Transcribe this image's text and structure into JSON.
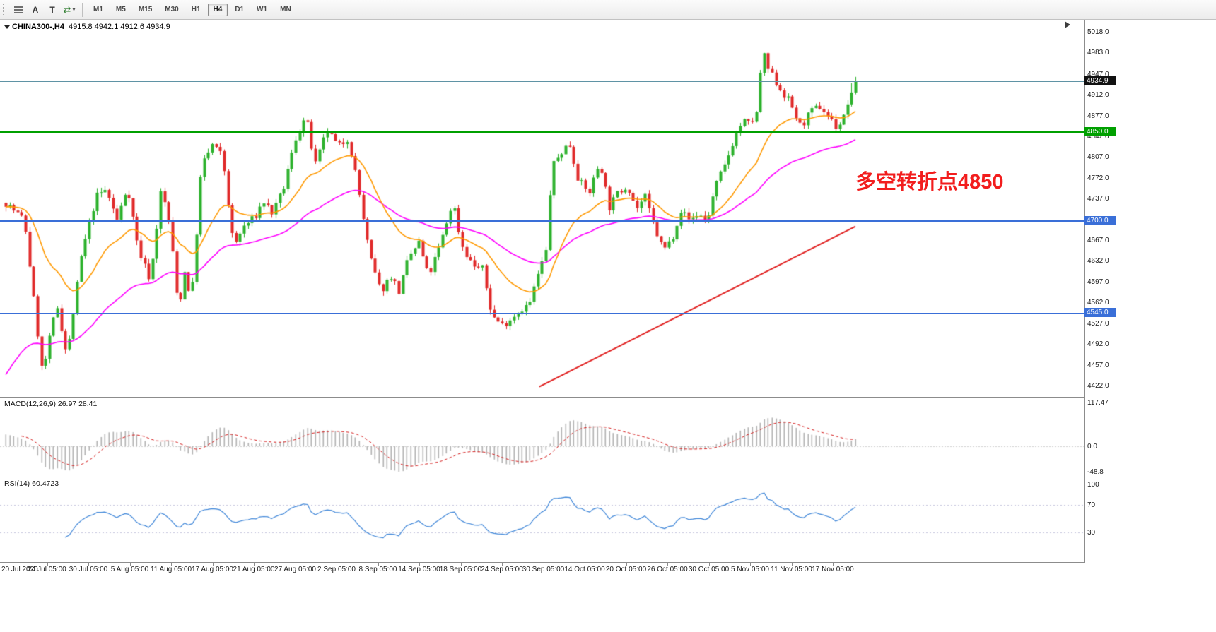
{
  "toolbar": {
    "text_tool_label": "A",
    "template_tool_label": "T",
    "refresh_glyph": "⇄",
    "caret_glyph": "▾",
    "timeframes": [
      "M1",
      "M5",
      "M15",
      "M30",
      "H1",
      "H4",
      "D1",
      "W1",
      "MN"
    ],
    "active_timeframe": "H4"
  },
  "chart": {
    "symbol_title": "CHINA300-,H4",
    "ohlc_text": "4915.8 4942.1 4912.6 4934.9",
    "annotation": {
      "text": "多空转折点4850",
      "color": "#F21D1D"
    },
    "price_axis_labels": [
      "5018.0",
      "4983.0",
      "4947.0",
      "4912.0",
      "4877.0",
      "4842.0",
      "4807.0",
      "4772.0",
      "4737.0",
      "4702.0",
      "4667.0",
      "4632.0",
      "4597.0",
      "4562.0",
      "4527.0",
      "4492.0",
      "4457.0",
      "4422.0"
    ],
    "current_price_marker": {
      "label": "4934.9",
      "price": 4934.9,
      "box_color": "#111111",
      "line_color": "#5F93A5"
    },
    "level_lines": [
      {
        "label": "4850.0",
        "price": 4850,
        "color": "#00A000"
      },
      {
        "label": "4700.0",
        "price": 4700,
        "color": "#3A6FD8"
      },
      {
        "label": "4545.0",
        "price": 4545,
        "color": "#3A6FD8"
      }
    ]
  },
  "macd_panel": {
    "title": "MACD(12,26,9)",
    "values": "26.97 28.41",
    "axis_labels": [
      "117.47",
      "0.0",
      "-48.8"
    ],
    "histogram_color": "#B2B2B2",
    "signal_color": "#D42020"
  },
  "rsi_panel": {
    "title": "RSI(14)",
    "value": "60.4723",
    "axis_labels": [
      "100",
      "70",
      "30"
    ],
    "levels": [
      70,
      30
    ],
    "line_color": "#3D85D8"
  },
  "time_axis": {
    "labels": [
      "20 Jul 2020",
      "24 Jul 05:00",
      "30 Jul 05:00",
      "5 Aug 05:00",
      "11 Aug 05:00",
      "17 Aug 05:00",
      "21 Aug 05:00",
      "27 Aug 05:00",
      "2 Sep 05:00",
      "8 Sep 05:00",
      "14 Sep 05:00",
      "18 Sep 05:00",
      "24 Sep 05:00",
      "30 Sep 05:00",
      "14 Oct 05:00",
      "20 Oct 05:00",
      "26 Oct 05:00",
      "30 Oct 05:00",
      "5 Nov 05:00",
      "11 Nov 05:00",
      "17 Nov 05:00"
    ]
  },
  "chart_data": {
    "type": "candlestick",
    "symbol": "CHINA300-",
    "timeframe": "H4",
    "bars": 215,
    "y_range": [
      4422,
      5018
    ],
    "last_bar": {
      "open": 4915.8,
      "high": 4942.1,
      "low": 4912.6,
      "close": 4934.9
    },
    "up_color": "#2DB22D",
    "down_color": "#E02A2A",
    "price_path": [
      [
        0,
        4730
      ],
      [
        0.022,
        4700
      ],
      [
        0.043,
        4440
      ],
      [
        0.06,
        4560
      ],
      [
        0.072,
        4470
      ],
      [
        0.089,
        4640
      ],
      [
        0.106,
        4740
      ],
      [
        0.118,
        4752
      ],
      [
        0.131,
        4700
      ],
      [
        0.143,
        4760
      ],
      [
        0.156,
        4650
      ],
      [
        0.17,
        4600
      ],
      [
        0.183,
        4755
      ],
      [
        0.193,
        4690
      ],
      [
        0.203,
        4548
      ],
      [
        0.211,
        4620
      ],
      [
        0.218,
        4560
      ],
      [
        0.23,
        4790
      ],
      [
        0.243,
        4828
      ],
      [
        0.255,
        4808
      ],
      [
        0.268,
        4655
      ],
      [
        0.28,
        4690
      ],
      [
        0.293,
        4705
      ],
      [
        0.303,
        4733
      ],
      [
        0.314,
        4712
      ],
      [
        0.326,
        4750
      ],
      [
        0.341,
        4838
      ],
      [
        0.353,
        4876
      ],
      [
        0.364,
        4792
      ],
      [
        0.378,
        4852
      ],
      [
        0.391,
        4824
      ],
      [
        0.403,
        4840
      ],
      [
        0.413,
        4768
      ],
      [
        0.428,
        4640
      ],
      [
        0.441,
        4580
      ],
      [
        0.453,
        4608
      ],
      [
        0.463,
        4580
      ],
      [
        0.474,
        4638
      ],
      [
        0.486,
        4663
      ],
      [
        0.497,
        4605
      ],
      [
        0.511,
        4658
      ],
      [
        0.526,
        4733
      ],
      [
        0.536,
        4660
      ],
      [
        0.549,
        4625
      ],
      [
        0.561,
        4618
      ],
      [
        0.572,
        4540
      ],
      [
        0.584,
        4524
      ],
      [
        0.594,
        4535
      ],
      [
        0.605,
        4550
      ],
      [
        0.616,
        4558
      ],
      [
        0.626,
        4608
      ],
      [
        0.636,
        4650
      ],
      [
        0.642,
        4788
      ],
      [
        0.655,
        4818
      ],
      [
        0.663,
        4830
      ],
      [
        0.674,
        4768
      ],
      [
        0.686,
        4745
      ],
      [
        0.699,
        4800
      ],
      [
        0.71,
        4722
      ],
      [
        0.721,
        4748
      ],
      [
        0.732,
        4760
      ],
      [
        0.742,
        4720
      ],
      [
        0.752,
        4740
      ],
      [
        0.763,
        4688
      ],
      [
        0.774,
        4650
      ],
      [
        0.784,
        4670
      ],
      [
        0.794,
        4718
      ],
      [
        0.805,
        4700
      ],
      [
        0.815,
        4712
      ],
      [
        0.825,
        4698
      ],
      [
        0.835,
        4758
      ],
      [
        0.846,
        4792
      ],
      [
        0.857,
        4838
      ],
      [
        0.867,
        4868
      ],
      [
        0.875,
        4862
      ],
      [
        0.884,
        4880
      ],
      [
        0.89,
        4988
      ],
      [
        0.896,
        4958
      ],
      [
        0.904,
        4938
      ],
      [
        0.913,
        4918
      ],
      [
        0.923,
        4898
      ],
      [
        0.935,
        4858
      ],
      [
        0.946,
        4880
      ],
      [
        0.957,
        4893
      ],
      [
        0.967,
        4878
      ],
      [
        0.977,
        4858
      ],
      [
        0.985,
        4868
      ],
      [
        0.993,
        4912
      ],
      [
        1,
        4932
      ]
    ],
    "moving_averages": [
      {
        "type": "ema",
        "period": 21,
        "color": "#FF9900"
      },
      {
        "type": "ema",
        "period": 55,
        "color": "#FF00FF"
      }
    ],
    "trendline": {
      "t1": 0.628,
      "p1": 4420,
      "t2": 1.0,
      "p2": 4690,
      "color": "#E02020",
      "width": 2
    },
    "horizontal_lines": [
      4850,
      4700,
      4545
    ],
    "indicators": [
      {
        "name": "MACD",
        "params": [
          12,
          26,
          9
        ],
        "last_values": [
          26.97,
          28.41
        ],
        "axis_range": [
          -48.8,
          117.47
        ]
      },
      {
        "name": "RSI",
        "params": [
          14
        ],
        "last_value": 60.4723,
        "levels": [
          70,
          30
        ]
      }
    ]
  }
}
